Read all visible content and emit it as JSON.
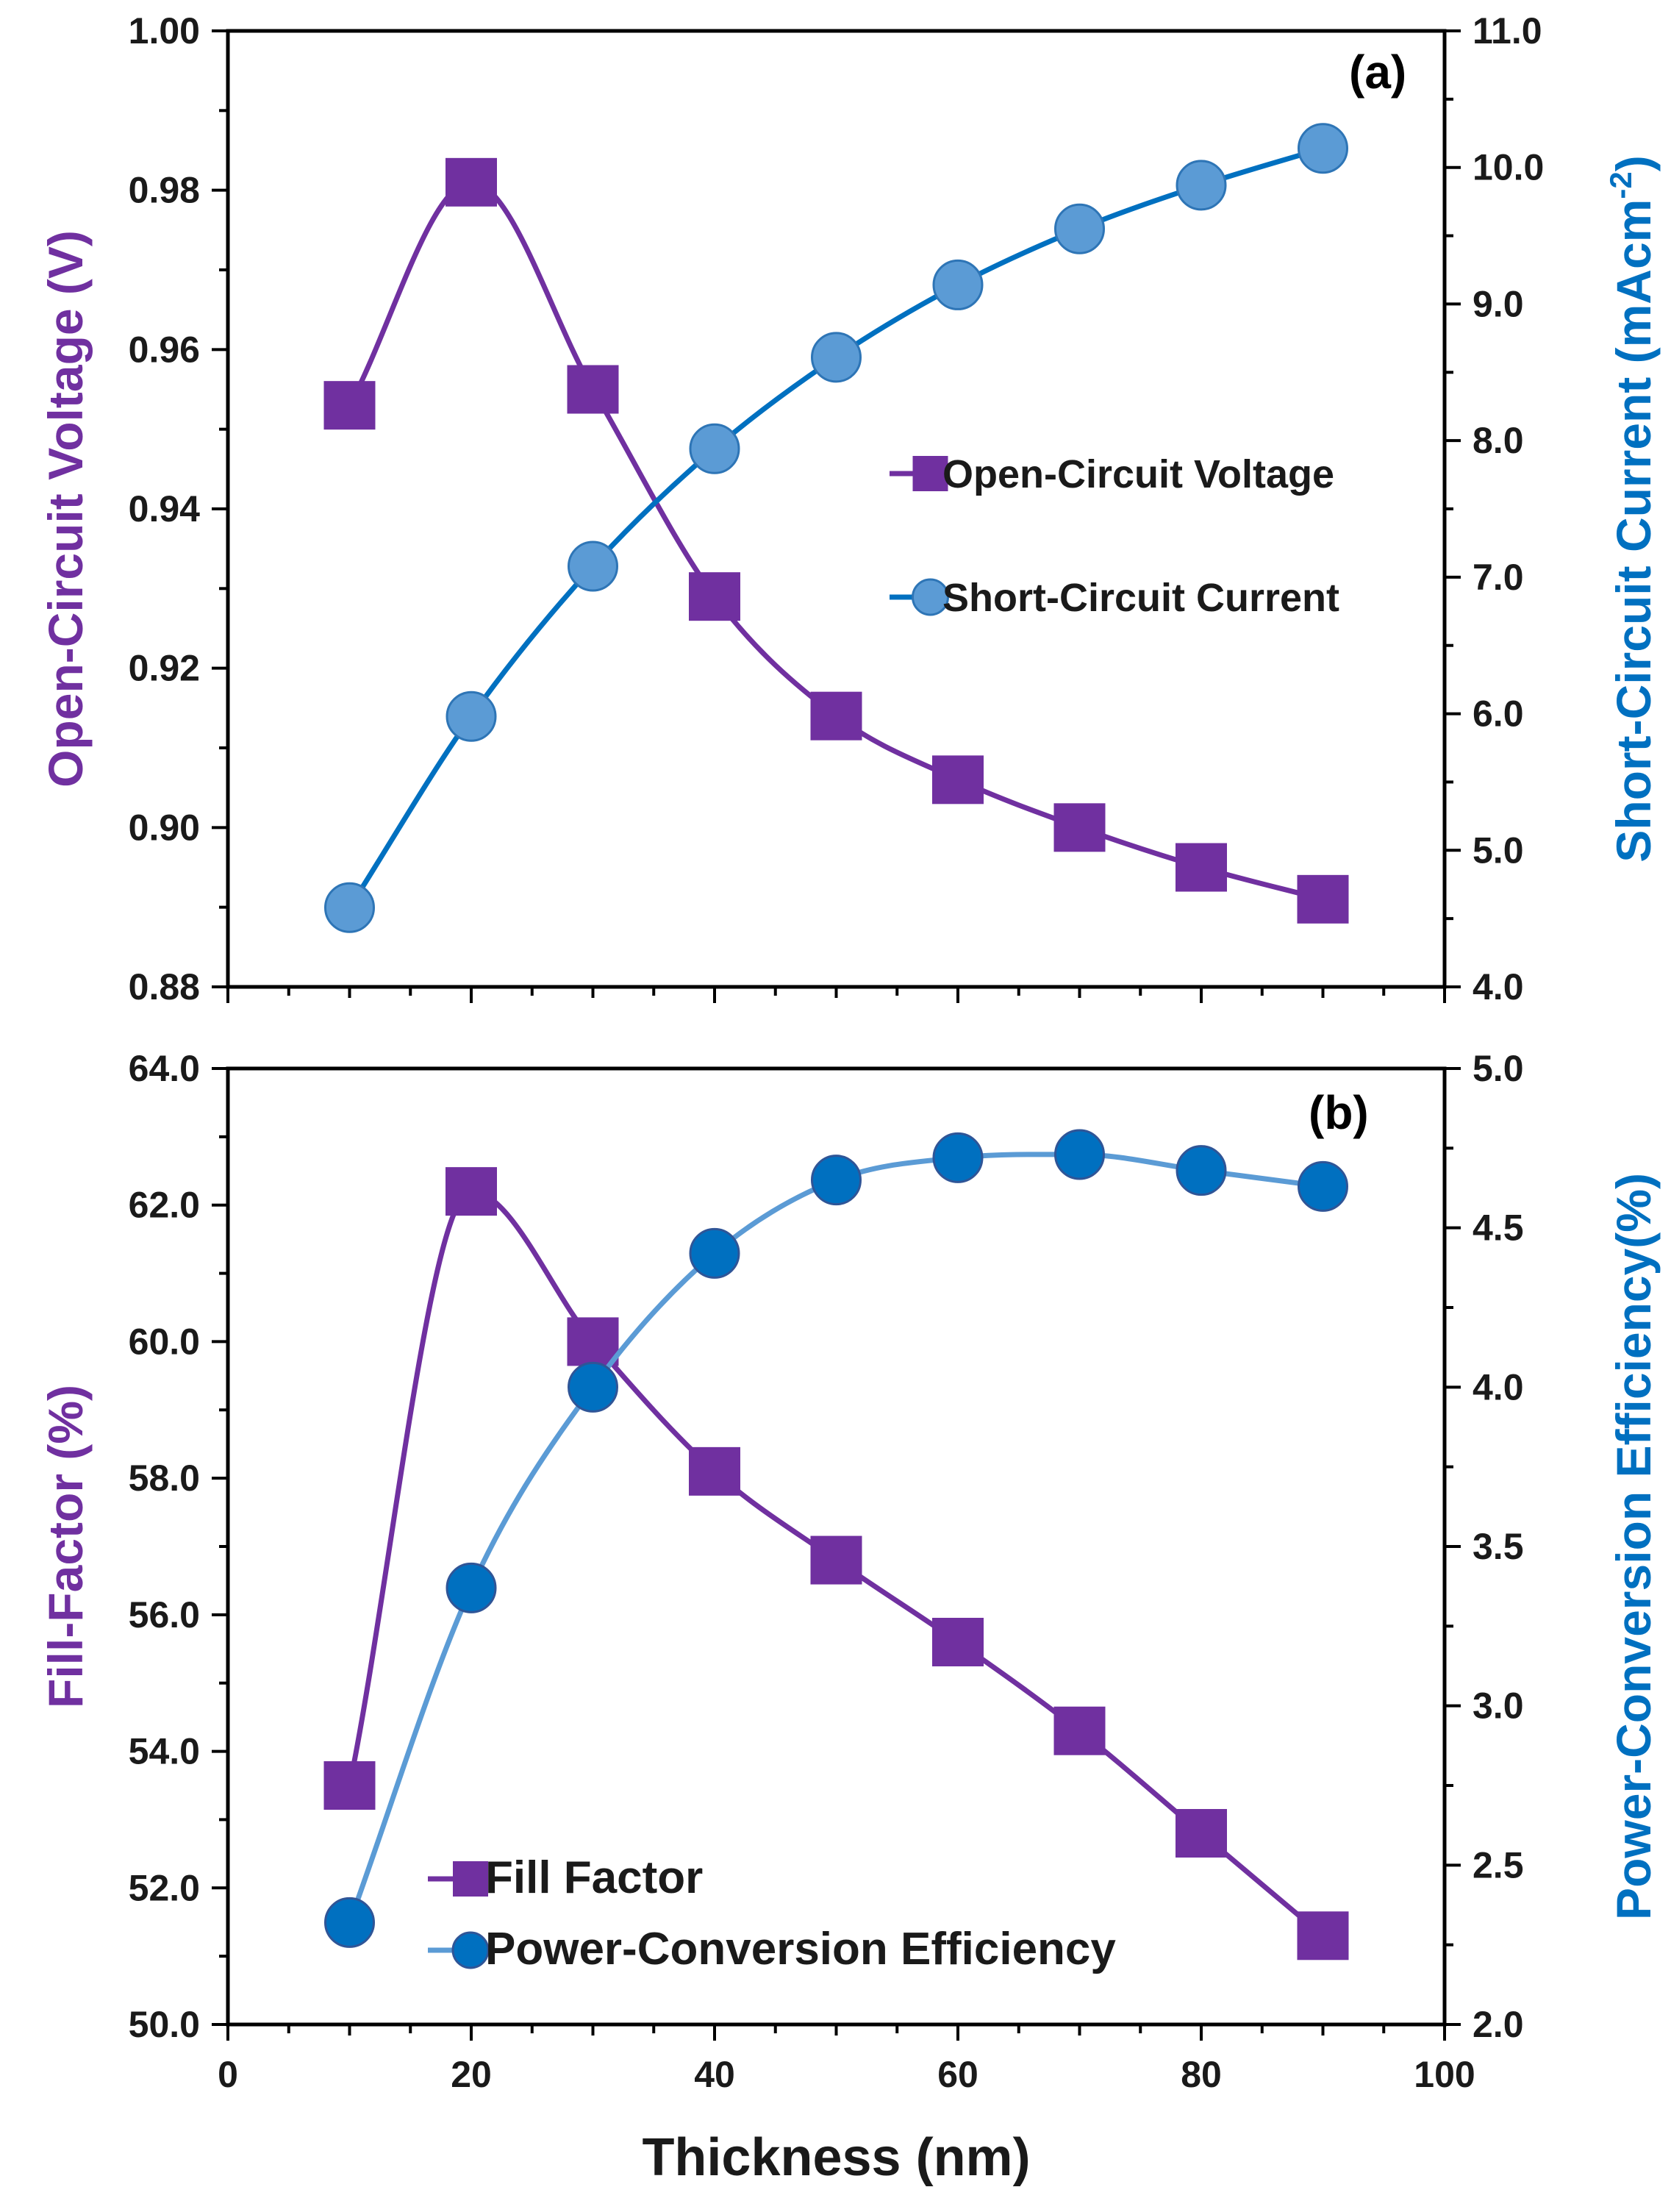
{
  "colors": {
    "purple": "#7030A0",
    "blue_dark": "#0070C0",
    "blue_light": "#5B9BD5",
    "blue_marker_a": "#5B9BD5",
    "blue_marker_b": "#0070C0"
  },
  "chart_data": [
    {
      "id": "panel-a",
      "type": "line",
      "panel_label": "(a)",
      "x": [
        10,
        20,
        30,
        40,
        50,
        60,
        70,
        80,
        90
      ],
      "xlim": [
        0,
        100
      ],
      "x_ticks": [
        0,
        20,
        40,
        60,
        80,
        100
      ],
      "x_tick_labels": [
        "0",
        "20",
        "40",
        "60",
        "80",
        "100"
      ],
      "ylabel_left": "Open-Circuit Voltage (V)",
      "ylim_left": [
        0.88,
        1.0
      ],
      "y_ticks_left": [
        0.88,
        0.9,
        0.92,
        0.94,
        0.96,
        0.98,
        1.0
      ],
      "y_tick_labels_left": [
        "0.88",
        "0.90",
        "0.92",
        "0.94",
        "0.96",
        "0.98",
        "1.00"
      ],
      "ylabel_right": "Short-Circuit Current (mAcm",
      "ylabel_right_sup": "-2",
      "ylabel_right_close": ")",
      "ylim_right": [
        4.0,
        11.0
      ],
      "y_ticks_right": [
        4.0,
        5.0,
        6.0,
        7.0,
        8.0,
        9.0,
        10.0,
        11.0
      ],
      "y_tick_labels_right": [
        "4.0",
        "5.0",
        "6.0",
        "7.0",
        "8.0",
        "9.0",
        "10.0",
        "11.0"
      ],
      "legend_position": "center-right",
      "series": [
        {
          "name": "Open-Circuit Voltage",
          "axis": "left",
          "marker": "square",
          "values": [
            0.953,
            0.981,
            0.955,
            0.929,
            0.914,
            0.906,
            0.9,
            0.895,
            0.891
          ]
        },
        {
          "name": "Short-Circuit Current",
          "axis": "right",
          "marker": "circle",
          "values": [
            4.58,
            5.98,
            7.08,
            7.94,
            8.61,
            9.14,
            9.55,
            9.87,
            10.14
          ]
        }
      ]
    },
    {
      "id": "panel-b",
      "type": "line",
      "panel_label": "(b)",
      "x": [
        10,
        20,
        30,
        40,
        50,
        60,
        70,
        80,
        90
      ],
      "xlim": [
        0,
        100
      ],
      "x_ticks": [
        0,
        20,
        40,
        60,
        80,
        100
      ],
      "x_tick_labels": [
        "0",
        "20",
        "40",
        "60",
        "80",
        "100"
      ],
      "xlabel": "Thickness (nm)",
      "ylabel_left": "Fill-Factor (%)",
      "ylim_left": [
        50.0,
        64.0
      ],
      "y_ticks_left": [
        50,
        52,
        54,
        56,
        58,
        60,
        62,
        64
      ],
      "y_tick_labels_left": [
        "50.0",
        "52.0",
        "54.0",
        "56.0",
        "58.0",
        "60.0",
        "62.0",
        "64.0"
      ],
      "ylabel_right": "Power-Conversion Efficiency(%)",
      "ylim_right": [
        2.0,
        5.0
      ],
      "y_ticks_right": [
        2.0,
        2.5,
        3.0,
        3.5,
        4.0,
        4.5,
        5.0
      ],
      "y_tick_labels_right": [
        "2.0",
        "2.5",
        "3.0",
        "3.5",
        "4.0",
        "4.5",
        "5.0"
      ],
      "legend_position": "bottom-left",
      "series": [
        {
          "name": "Fill Factor",
          "axis": "left",
          "marker": "square",
          "values": [
            53.5,
            62.2,
            60.0,
            58.1,
            56.8,
            55.6,
            54.3,
            52.8,
            51.3
          ]
        },
        {
          "name": "Power-Conversion Efficiency",
          "axis": "right",
          "marker": "circle",
          "values": [
            2.32,
            3.37,
            4.0,
            4.42,
            4.65,
            4.72,
            4.73,
            4.68,
            4.63
          ]
        }
      ]
    }
  ]
}
